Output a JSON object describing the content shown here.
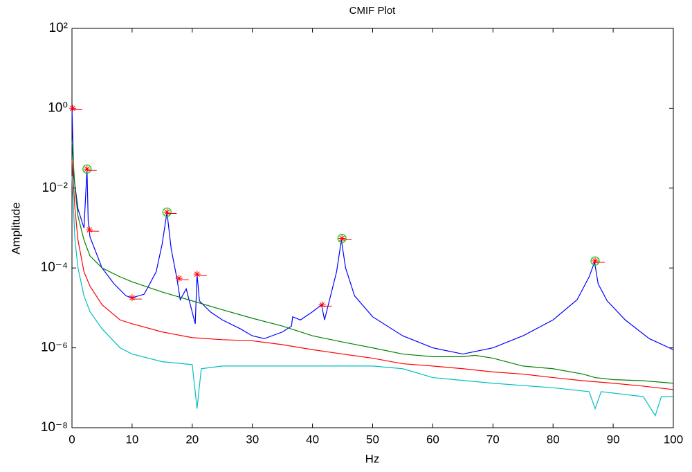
{
  "chart_data": {
    "type": "line",
    "title": "CMIF Plot",
    "x_label": "Hz",
    "y_label": "Amplitude",
    "log_y": true,
    "xlim": [
      0,
      100
    ],
    "xticks": [
      0,
      10,
      20,
      30,
      40,
      50,
      60,
      70,
      80,
      90,
      100
    ],
    "ylim": [
      1e-08,
      100
    ],
    "yticks": [
      {
        "value": 1e-08,
        "label": "10⁻⁸"
      },
      {
        "value": 1e-06,
        "label": "10⁻⁶"
      },
      {
        "value": 0.0001,
        "label": "10⁻⁴"
      },
      {
        "value": 0.01,
        "label": "10⁻²"
      },
      {
        "value": 1,
        "label": "10⁰"
      },
      {
        "value": 100,
        "label": "10²"
      }
    ],
    "series": [
      {
        "color": "#0000ff",
        "x": [
          0,
          0.3,
          1,
          2,
          2.5,
          2.7,
          3,
          5,
          7,
          9,
          10,
          12,
          14,
          15,
          15.8,
          16.5,
          17.5,
          18,
          19,
          20.5,
          20.8,
          21.2,
          23,
          25,
          28,
          30,
          32,
          35,
          36.5,
          36.7,
          38,
          40,
          41.5,
          42,
          43,
          44,
          44.8,
          45.5,
          47,
          50,
          55,
          60,
          65,
          70,
          75,
          80,
          84,
          86,
          86.9,
          87.5,
          89,
          92,
          96,
          100
        ],
        "values": [
          1,
          0.02,
          0.003,
          0.001,
          0.03,
          0.0015,
          0.0006,
          0.0001,
          4e-05,
          2e-05,
          1.8e-05,
          2.2e-05,
          8e-05,
          0.0004,
          0.0025,
          0.0003,
          5e-05,
          1.6e-05,
          3e-05,
          4e-06,
          7e-05,
          1.5e-05,
          8e-06,
          5e-06,
          3e-06,
          2e-06,
          1.7e-06,
          2.5e-06,
          3.5e-06,
          6e-06,
          5e-06,
          8e-06,
          1.2e-05,
          5e-06,
          2e-05,
          8e-05,
          0.0005,
          0.0001,
          2e-05,
          6e-06,
          2e-06,
          1e-06,
          7e-07,
          1e-06,
          2e-06,
          5e-06,
          1.6e-05,
          6e-05,
          0.00014,
          4e-05,
          1.5e-05,
          5e-06,
          1.7e-06,
          9e-07
        ]
      },
      {
        "color": "#008000",
        "x": [
          0,
          0.5,
          1,
          2,
          3,
          5,
          8,
          10,
          15,
          20,
          25,
          30,
          35,
          40,
          45,
          50,
          55,
          60,
          65,
          67,
          70,
          75,
          80,
          85,
          87,
          90,
          95,
          100
        ],
        "values": [
          0.15,
          0.01,
          0.002,
          0.0005,
          0.0002,
          0.0001,
          6e-05,
          4.5e-05,
          2.5e-05,
          1.5e-05,
          9e-06,
          5.5e-06,
          3.5e-06,
          2e-06,
          1.4e-06,
          1e-06,
          7e-07,
          6e-07,
          6e-07,
          6.5e-07,
          5.5e-07,
          3.5e-07,
          3e-07,
          2.2e-07,
          1.8e-07,
          1.6e-07,
          1.5e-07,
          1.3e-07
        ]
      },
      {
        "color": "#ff0000",
        "x": [
          0,
          0.5,
          1,
          2,
          3,
          5,
          8,
          10,
          15,
          20,
          25,
          30,
          35,
          40,
          45,
          50,
          55,
          60,
          65,
          70,
          75,
          80,
          85,
          90,
          95,
          100
        ],
        "values": [
          0.05,
          0.003,
          0.0005,
          8e-05,
          3.5e-05,
          1.2e-05,
          5e-06,
          4e-06,
          2.5e-06,
          1.8e-06,
          1.6e-06,
          1.5e-06,
          1.2e-06,
          9e-07,
          7e-07,
          5.5e-07,
          4e-07,
          3.5e-07,
          3e-07,
          2.5e-07,
          2.2e-07,
          1.8e-07,
          1.5e-07,
          1.3e-07,
          1.1e-07,
          9e-08
        ]
      },
      {
        "color": "#00bfbf",
        "x": [
          0,
          0.5,
          1,
          2,
          3,
          5,
          8,
          10,
          15,
          20,
          20.8,
          21.5,
          25,
          30,
          40,
          50,
          55,
          60,
          70,
          80,
          86,
          87,
          88,
          95,
          97,
          98,
          100
        ],
        "values": [
          0.02,
          0.0005,
          0.0001,
          2e-05,
          8e-06,
          3e-06,
          1e-06,
          7e-07,
          4.5e-07,
          3.8e-07,
          3e-08,
          3e-07,
          3.5e-07,
          3.5e-07,
          3.5e-07,
          3.5e-07,
          3e-07,
          1.8e-07,
          1.3e-07,
          1e-07,
          8e-08,
          3e-08,
          8e-08,
          6e-08,
          2e-08,
          6e-08,
          6e-08
        ]
      }
    ],
    "peaks": {
      "color": "#ff0000",
      "x": [
        0.1,
        2.5,
        2.9,
        10,
        15.8,
        17.8,
        20.8,
        41.6,
        44.9,
        87
      ],
      "values": [
        1,
        0.03,
        0.0009,
        1.8e-05,
        0.0025,
        5.5e-05,
        7e-05,
        1.2e-05,
        0.00055,
        0.00015
      ]
    },
    "selected": {
      "color": "#00cc00",
      "x": [
        2.5,
        15.8,
        44.9,
        87
      ],
      "values": [
        0.03,
        0.0025,
        0.00055,
        0.00015
      ]
    }
  }
}
